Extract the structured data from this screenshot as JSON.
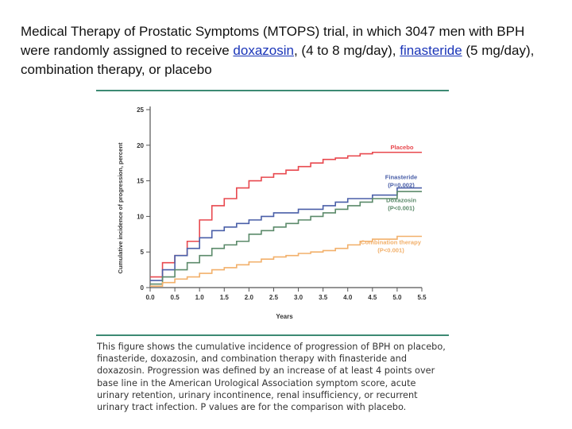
{
  "slide": {
    "title_part1": "Medical Therapy of Prostatic Symptoms (MTOPS) trial, in which 3047 men with BPH were randomly assigned to receive ",
    "link1": "doxazosin",
    "title_part2": ", (4 to 8 mg/day),  ",
    "link2": "finasteride",
    "title_part3": " (5 mg/day), combination therapy, or placebo",
    "caption": "This figure shows the cumulative incidence of progression of BPH on placebo, finasteride, doxazosin, and combination therapy with finasteride and doxazosin. Progression was defined by an increase of at least 4 points over base line in the American Urological Association symptom score, acute urinary retention, urinary incontinence, renal insufficiency, or recurrent urinary tract infection. P values are for the comparison with placebo."
  },
  "chart_data": {
    "type": "line",
    "step": true,
    "xlabel": "Years",
    "ylabel": "Cumulative incidence of progression, percent",
    "xlim": [
      0,
      5.5
    ],
    "ylim": [
      0,
      25
    ],
    "xticks": [
      "0.0",
      "0.5",
      "1.0",
      "1.5",
      "2.0",
      "2.5",
      "3.0",
      "3.5",
      "4.0",
      "4.5",
      "5.0",
      "5.5"
    ],
    "yticks": [
      "0",
      "5",
      "10",
      "15",
      "20",
      "25"
    ],
    "grid": false,
    "series": [
      {
        "name": "Placebo",
        "p_label": "",
        "color": "#e8484e",
        "x": [
          0,
          0.25,
          0.5,
          0.75,
          1.0,
          1.25,
          1.5,
          1.75,
          2.0,
          2.25,
          2.5,
          2.75,
          3.0,
          3.25,
          3.5,
          3.75,
          4.0,
          4.25,
          4.5,
          5.0,
          5.5
        ],
        "y": [
          1.5,
          3.5,
          4.5,
          6.5,
          9.5,
          11.5,
          12.5,
          14.0,
          15.0,
          15.5,
          16.0,
          16.5,
          17.0,
          17.5,
          18.0,
          18.2,
          18.5,
          18.8,
          19.0,
          19.0,
          19.0
        ]
      },
      {
        "name": "Finasteride",
        "p_label": "(P=0.002)",
        "color": "#4a5fa8",
        "x": [
          0,
          0.25,
          0.5,
          0.75,
          1.0,
          1.25,
          1.5,
          1.75,
          2.0,
          2.25,
          2.5,
          2.75,
          3.0,
          3.25,
          3.5,
          3.75,
          4.0,
          4.25,
          4.5,
          5.0,
          5.5
        ],
        "y": [
          1.0,
          2.5,
          4.5,
          5.5,
          7.0,
          8.0,
          8.5,
          9.0,
          9.5,
          10.0,
          10.5,
          10.5,
          11.0,
          11.0,
          11.5,
          12.0,
          12.5,
          12.5,
          13.0,
          14.0,
          14.0
        ]
      },
      {
        "name": "Doxazosin",
        "p_label": "(P<0.001)",
        "color": "#5b8a6a",
        "x": [
          0,
          0.25,
          0.5,
          0.75,
          1.0,
          1.25,
          1.5,
          1.75,
          2.0,
          2.25,
          2.5,
          2.75,
          3.0,
          3.25,
          3.5,
          3.75,
          4.0,
          4.25,
          4.5,
          5.0,
          5.5
        ],
        "y": [
          0.5,
          1.5,
          2.5,
          3.5,
          4.5,
          5.5,
          6.0,
          6.5,
          7.5,
          8.0,
          8.5,
          9.0,
          9.5,
          10.0,
          10.5,
          11.0,
          11.5,
          12.0,
          12.5,
          13.5,
          13.5
        ]
      },
      {
        "name": "Combination therapy",
        "p_label": "(P<0.001)",
        "color": "#f2b06b",
        "x": [
          0,
          0.25,
          0.5,
          0.75,
          1.0,
          1.25,
          1.5,
          1.75,
          2.0,
          2.25,
          2.5,
          2.75,
          3.0,
          3.25,
          3.5,
          3.75,
          4.0,
          4.25,
          4.5,
          5.0,
          5.5
        ],
        "y": [
          0.2,
          0.7,
          1.2,
          1.5,
          2.0,
          2.5,
          2.8,
          3.2,
          3.6,
          4.0,
          4.3,
          4.5,
          4.8,
          5.0,
          5.2,
          5.5,
          6.0,
          6.5,
          6.8,
          7.2,
          7.2
        ]
      }
    ]
  }
}
